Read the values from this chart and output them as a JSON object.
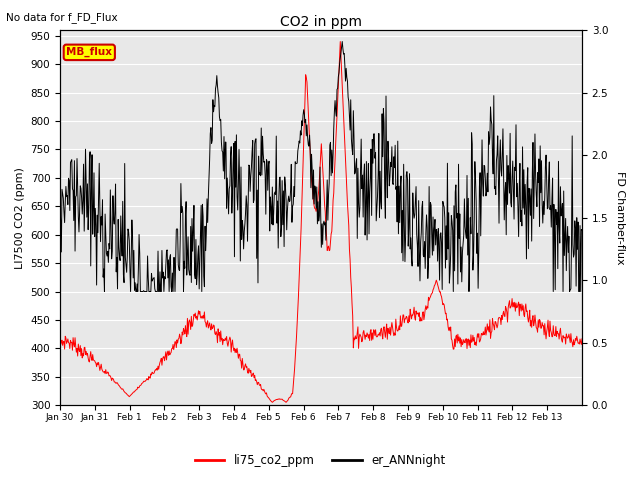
{
  "title": "CO2 in ppm",
  "subtitle": "No data for f_FD_Flux",
  "ylabel_left": "LI7500 CO2 (ppm)",
  "ylabel_right": "FD Chamber-flux",
  "ylim_left": [
    300,
    960
  ],
  "ylim_right": [
    0.0,
    3.0
  ],
  "yticks_left": [
    300,
    350,
    400,
    450,
    500,
    550,
    600,
    650,
    700,
    750,
    800,
    850,
    900,
    950
  ],
  "yticks_right": [
    0.0,
    0.5,
    1.0,
    1.5,
    2.0,
    2.5,
    3.0
  ],
  "legend_label1": "li75_co2_ppm",
  "legend_label2": "er_ANNnight",
  "legend_color1": "#ff0000",
  "legend_color2": "#000000",
  "mb_flux_box_color": "#ffff00",
  "mb_flux_text_color": "#cc0000",
  "mb_flux_border_color": "#cc0000",
  "background_color": "#e8e8e8",
  "grid_color": "#ffffff",
  "n_points": 800
}
